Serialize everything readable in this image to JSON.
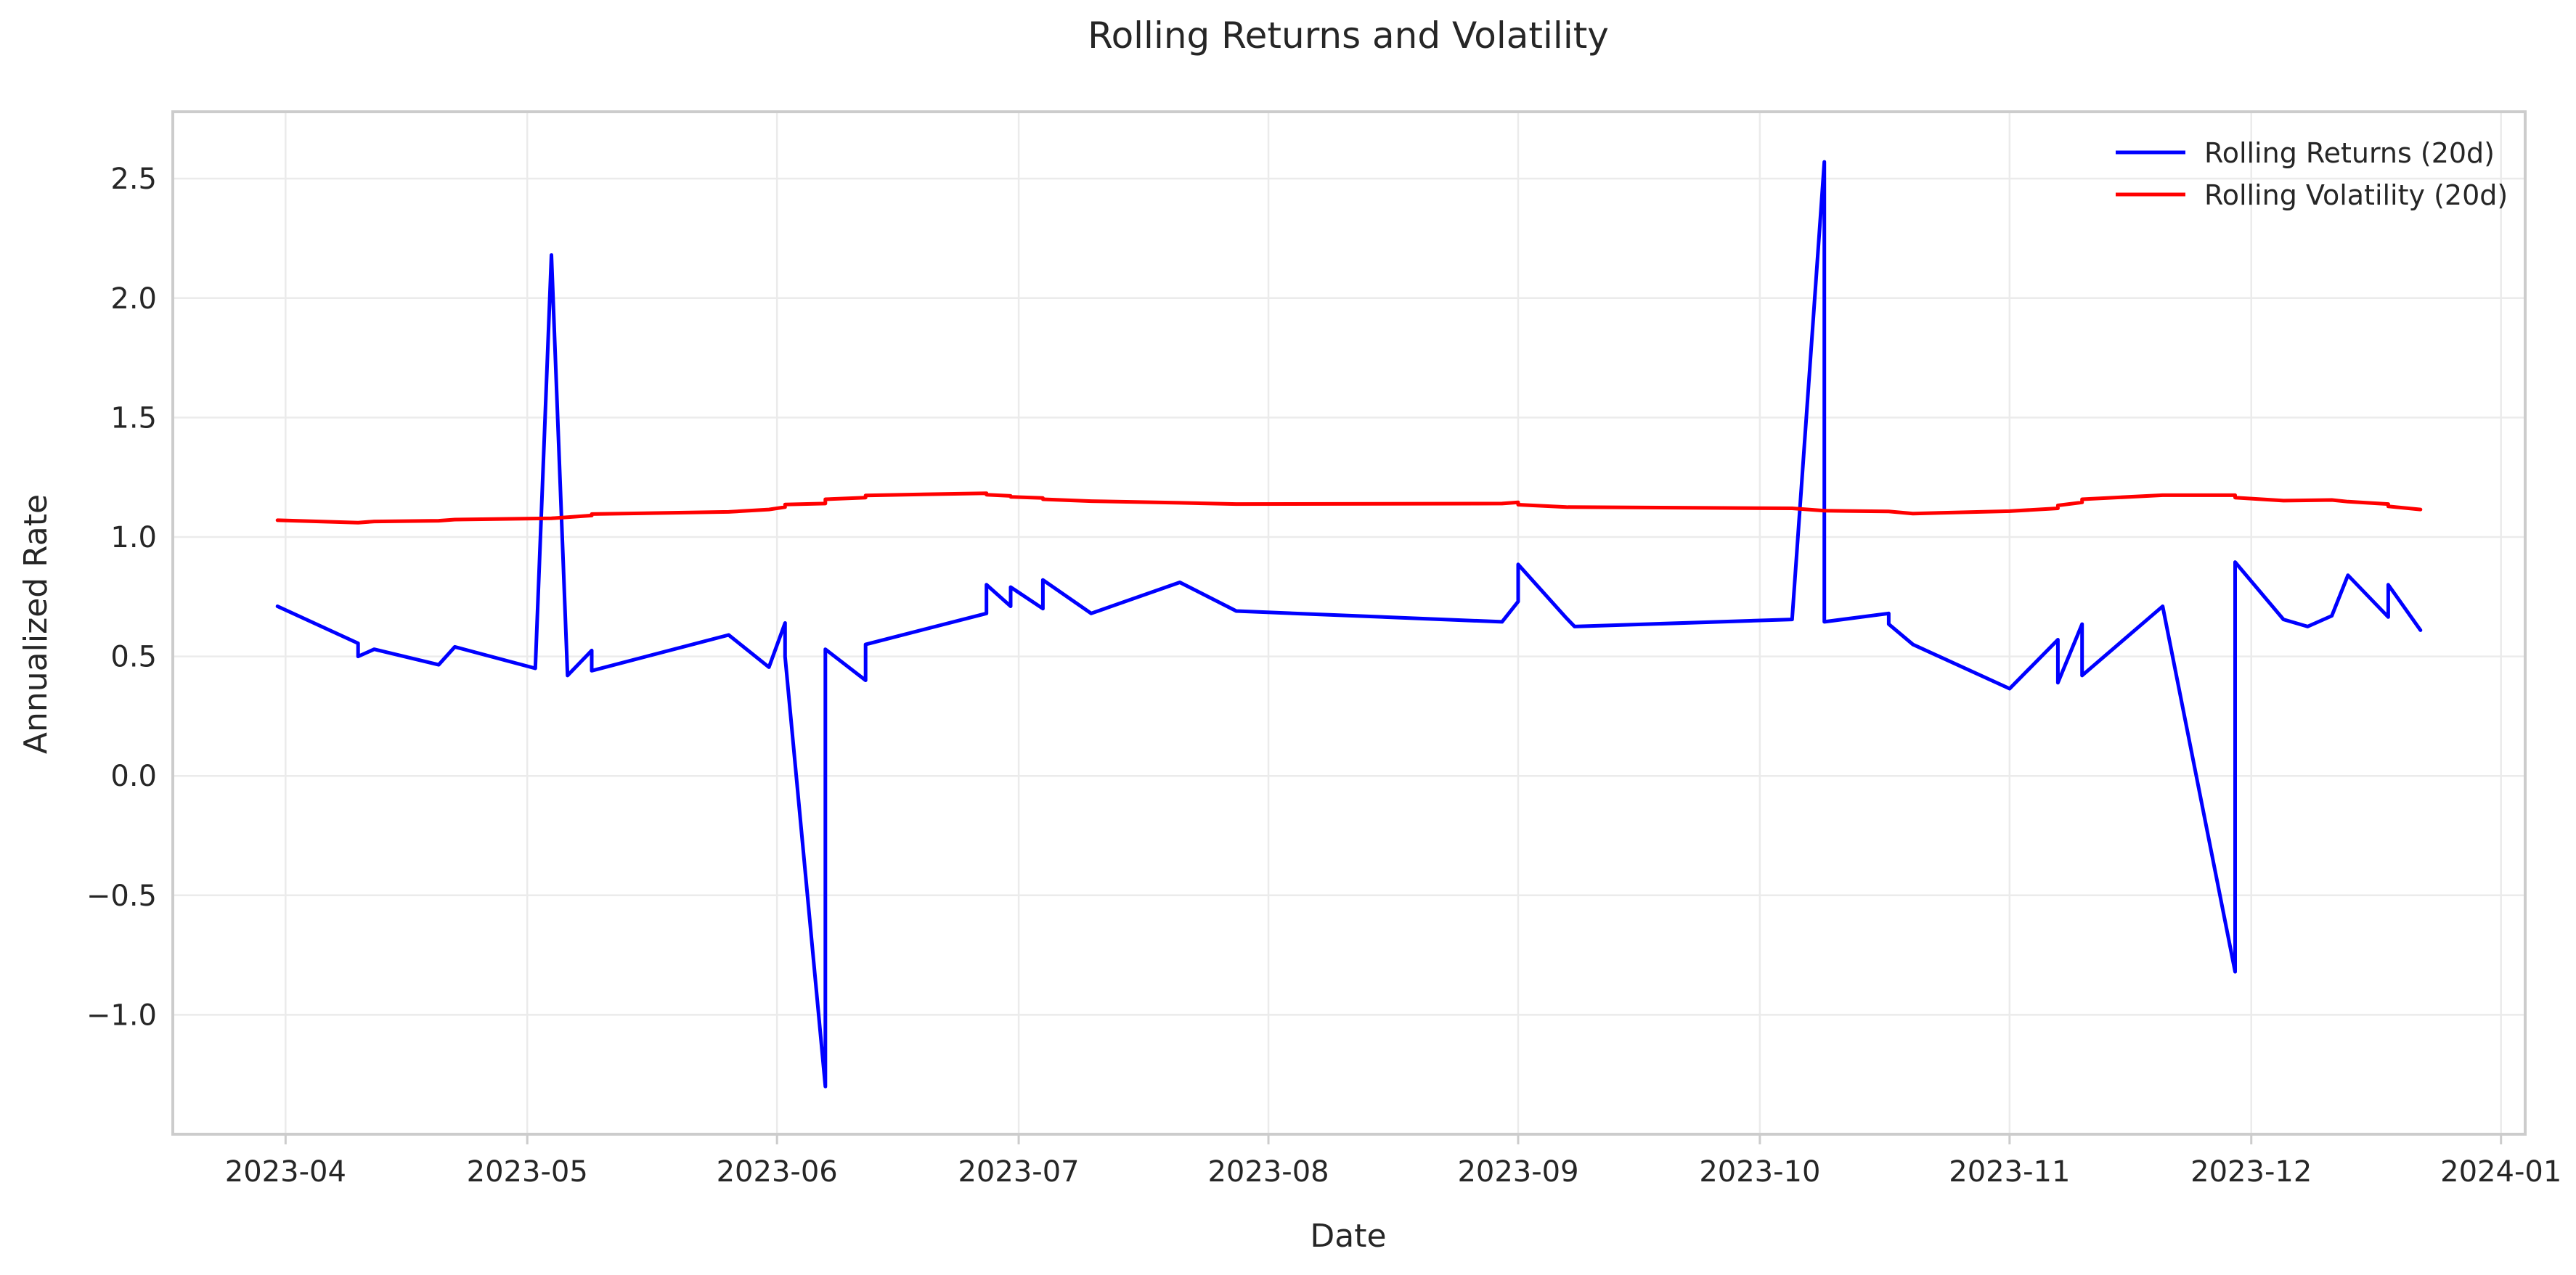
{
  "chart_data": {
    "type": "line",
    "title": "Rolling Returns and Volatility",
    "xlabel": "Date",
    "ylabel": "Annualized Rate",
    "xlim": [
      "2023-03-18",
      "2024-01-04"
    ],
    "ylim": [
      -1.5,
      2.78
    ],
    "x_ticks": [
      "2023-04",
      "2023-05",
      "2023-06",
      "2023-07",
      "2023-08",
      "2023-09",
      "2023-10",
      "2023-11",
      "2023-12",
      "2024-01"
    ],
    "y_ticks": [
      2.5,
      2.0,
      1.5,
      1.0,
      0.5,
      0.0,
      -0.5,
      -1.0
    ],
    "y_tick_labels": [
      "2.5",
      "2.0",
      "1.5",
      "1.0",
      "0.5",
      "0.0",
      "−0.5",
      "−1.0"
    ],
    "grid": true,
    "legend_position": "top-right",
    "series": [
      {
        "name": "Rolling Returns (20d)",
        "color": "#0000ff",
        "points": [
          [
            "2023-03-31",
            0.71
          ],
          [
            "2023-04-10",
            0.555
          ],
          [
            "2023-04-10",
            0.5
          ],
          [
            "2023-04-12",
            0.53
          ],
          [
            "2023-04-20",
            0.465
          ],
          [
            "2023-04-22",
            0.54
          ],
          [
            "2023-05-02",
            0.45
          ],
          [
            "2023-05-04",
            2.18
          ],
          [
            "2023-05-06",
            0.42
          ],
          [
            "2023-05-09",
            0.525
          ],
          [
            "2023-05-09",
            0.44
          ],
          [
            "2023-05-26",
            0.59
          ],
          [
            "2023-05-31",
            0.455
          ],
          [
            "2023-06-02",
            0.64
          ],
          [
            "2023-06-02",
            0.5
          ],
          [
            "2023-06-07",
            -1.3
          ],
          [
            "2023-06-07",
            0.53
          ],
          [
            "2023-06-12",
            0.4
          ],
          [
            "2023-06-12",
            0.55
          ],
          [
            "2023-06-27",
            0.68
          ],
          [
            "2023-06-27",
            0.8
          ],
          [
            "2023-06-30",
            0.71
          ],
          [
            "2023-06-30",
            0.79
          ],
          [
            "2023-07-04",
            0.7
          ],
          [
            "2023-07-04",
            0.82
          ],
          [
            "2023-07-10",
            0.68
          ],
          [
            "2023-07-21",
            0.81
          ],
          [
            "2023-07-28",
            0.69
          ],
          [
            "2023-08-30",
            0.645
          ],
          [
            "2023-09-01",
            0.73
          ],
          [
            "2023-09-01",
            0.885
          ],
          [
            "2023-09-07",
            0.66
          ],
          [
            "2023-09-08",
            0.625
          ],
          [
            "2023-10-05",
            0.655
          ],
          [
            "2023-10-09",
            2.57
          ],
          [
            "2023-10-09",
            0.645
          ],
          [
            "2023-10-17",
            0.68
          ],
          [
            "2023-10-17",
            0.635
          ],
          [
            "2023-10-20",
            0.55
          ],
          [
            "2023-11-01",
            0.365
          ],
          [
            "2023-11-07",
            0.57
          ],
          [
            "2023-11-07",
            0.39
          ],
          [
            "2023-11-10",
            0.635
          ],
          [
            "2023-11-10",
            0.42
          ],
          [
            "2023-11-20",
            0.71
          ],
          [
            "2023-11-29",
            -0.82
          ],
          [
            "2023-11-29",
            0.895
          ],
          [
            "2023-12-05",
            0.655
          ],
          [
            "2023-12-08",
            0.625
          ],
          [
            "2023-12-11",
            0.67
          ],
          [
            "2023-12-13",
            0.84
          ],
          [
            "2023-12-18",
            0.665
          ],
          [
            "2023-12-18",
            0.8
          ],
          [
            "2023-12-22",
            0.61
          ]
        ]
      },
      {
        "name": "Rolling Volatility (20d)",
        "color": "#ff0000",
        "points": [
          [
            "2023-03-31",
            1.07
          ],
          [
            "2023-04-10",
            1.06
          ],
          [
            "2023-04-12",
            1.065
          ],
          [
            "2023-04-20",
            1.068
          ],
          [
            "2023-04-22",
            1.073
          ],
          [
            "2023-05-04",
            1.078
          ],
          [
            "2023-05-09",
            1.09
          ],
          [
            "2023-05-09",
            1.096
          ],
          [
            "2023-05-26",
            1.105
          ],
          [
            "2023-05-31",
            1.115
          ],
          [
            "2023-06-02",
            1.125
          ],
          [
            "2023-06-02",
            1.136
          ],
          [
            "2023-06-07",
            1.14
          ],
          [
            "2023-06-07",
            1.158
          ],
          [
            "2023-06-12",
            1.165
          ],
          [
            "2023-06-12",
            1.174
          ],
          [
            "2023-06-27",
            1.183
          ],
          [
            "2023-06-27",
            1.177
          ],
          [
            "2023-06-30",
            1.172
          ],
          [
            "2023-06-30",
            1.168
          ],
          [
            "2023-07-04",
            1.163
          ],
          [
            "2023-07-04",
            1.158
          ],
          [
            "2023-07-10",
            1.15
          ],
          [
            "2023-07-21",
            1.143
          ],
          [
            "2023-07-28",
            1.138
          ],
          [
            "2023-08-30",
            1.14
          ],
          [
            "2023-09-01",
            1.145
          ],
          [
            "2023-09-01",
            1.135
          ],
          [
            "2023-09-07",
            1.125
          ],
          [
            "2023-10-05",
            1.12
          ],
          [
            "2023-10-09",
            1.11
          ],
          [
            "2023-10-17",
            1.107
          ],
          [
            "2023-10-20",
            1.098
          ],
          [
            "2023-11-01",
            1.108
          ],
          [
            "2023-11-07",
            1.12
          ],
          [
            "2023-11-07",
            1.132
          ],
          [
            "2023-11-10",
            1.145
          ],
          [
            "2023-11-10",
            1.158
          ],
          [
            "2023-11-20",
            1.175
          ],
          [
            "2023-11-29",
            1.175
          ],
          [
            "2023-11-29",
            1.165
          ],
          [
            "2023-12-05",
            1.152
          ],
          [
            "2023-12-11",
            1.155
          ],
          [
            "2023-12-13",
            1.148
          ],
          [
            "2023-12-18",
            1.138
          ],
          [
            "2023-12-18",
            1.128
          ],
          [
            "2023-12-22",
            1.115
          ]
        ]
      }
    ]
  }
}
